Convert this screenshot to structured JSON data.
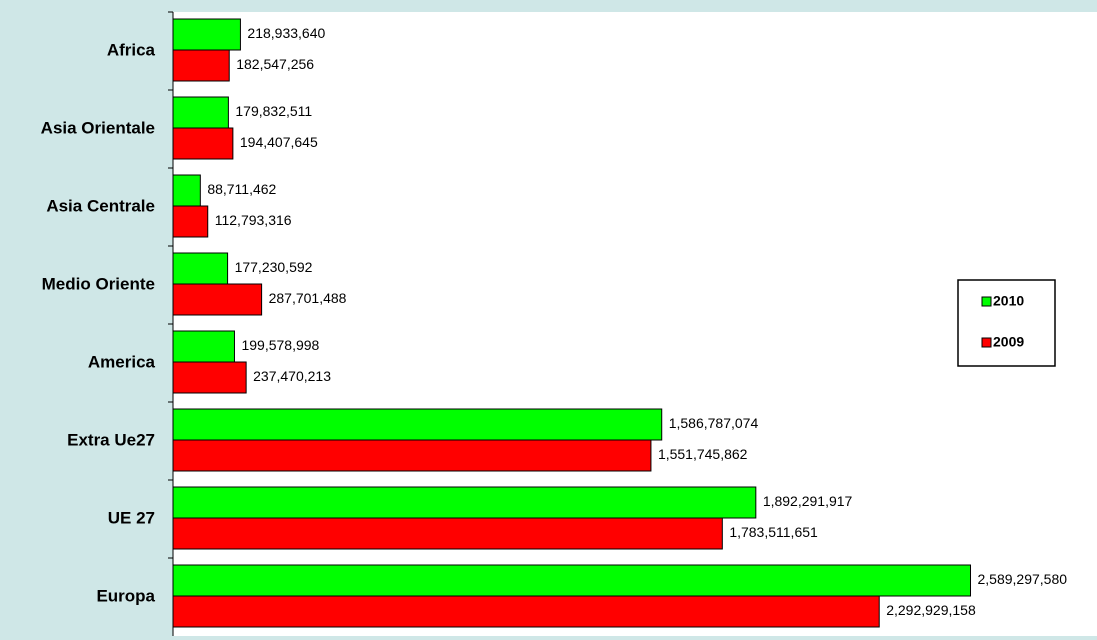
{
  "chart_data": {
    "type": "hbar",
    "categories": [
      "Africa",
      "Asia Orientale",
      "Asia Centrale",
      "Medio Oriente",
      "America",
      "Extra Ue27",
      "UE 27",
      "Europa"
    ],
    "series": [
      {
        "name": "2010",
        "color": "#00ff00",
        "values": [
          218933640,
          179832511,
          88711462,
          177230592,
          199578998,
          1586787074,
          1892291917,
          2589297580
        ],
        "value_labels": [
          "218,933,640",
          "179,832,511",
          "88,711,462",
          "177,230,592",
          "199,578,998",
          "1,586,787,074",
          "1,892,291,917",
          "2,589,297,580"
        ]
      },
      {
        "name": "2009",
        "color": "#ff0000",
        "values": [
          182547256,
          194407645,
          112793316,
          287701488,
          237470213,
          1551745862,
          1783511651,
          2292929158
        ],
        "value_labels": [
          "182,547,256",
          "194,407,645",
          "112,793,316",
          "287,701,488",
          "237,470,213",
          "1,551,745,862",
          "1,783,511,651",
          "2,292,929,158"
        ]
      }
    ],
    "xlim": [
      0,
      3000000000
    ],
    "legend": "right"
  }
}
